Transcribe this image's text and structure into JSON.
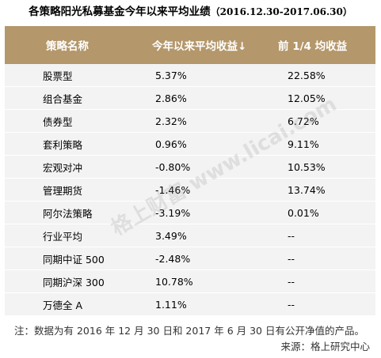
{
  "title": {
    "text": "各策略阳光私募基金今年以来平均业绩",
    "range": "（2016.12.30-2017.06.30）"
  },
  "table": {
    "headers": [
      "策略名称",
      "今年以来平均收益↓",
      "前 1/4 均收益"
    ],
    "rows": [
      {
        "strategy": "股票型",
        "ytd": "5.37%",
        "top_quartile": "22.58%"
      },
      {
        "strategy": "组合基金",
        "ytd": "2.86%",
        "top_quartile": "12.05%"
      },
      {
        "strategy": "债券型",
        "ytd": "2.32%",
        "top_quartile": "6.72%"
      },
      {
        "strategy": "套利策略",
        "ytd": "0.96%",
        "top_quartile": "9.11%"
      },
      {
        "strategy": "宏观对冲",
        "ytd": "-0.80%",
        "top_quartile": "10.53%"
      },
      {
        "strategy": "管理期货",
        "ytd": "-1.46%",
        "top_quartile": "13.74%"
      },
      {
        "strategy": "阿尔法策略",
        "ytd": "-3.19%",
        "top_quartile": "0.01%"
      },
      {
        "strategy": "行业平均",
        "ytd": "3.49%",
        "top_quartile": "--"
      },
      {
        "strategy": "同期中证 500",
        "ytd": "-2.48%",
        "top_quartile": "--"
      },
      {
        "strategy": "同期沪深 300",
        "ytd": "10.78%",
        "top_quartile": "--"
      },
      {
        "strategy": "万德全 A",
        "ytd": "1.11%",
        "top_quartile": "--"
      }
    ]
  },
  "watermark": "格上财富 www.licai.com",
  "footnote": "注：数据为有 2016 年 12 月 30 日和 2017 年 6 月 30 日有公开净值的产品。",
  "source": "来源：格上研究中心",
  "colors": {
    "header_bg": "#b4976a",
    "row_bg": "#f3f3f3"
  }
}
